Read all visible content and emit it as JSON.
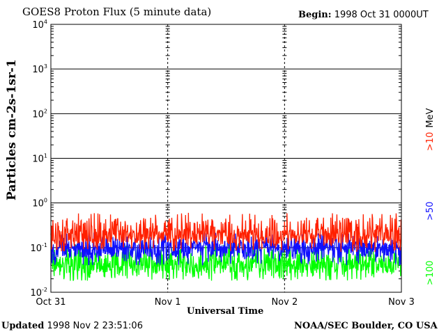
{
  "header": {
    "title": "GOES8 Proton Flux (5 minute data)",
    "begin_label": "Begin:",
    "begin_value": "1998 Oct 31 0000UT"
  },
  "footer": {
    "updated_label": "Updated",
    "updated_value": "1998 Nov  2 23:51:06",
    "credit": "NOAA/SEC Boulder, CO USA"
  },
  "chart_data": {
    "type": "line",
    "title": "GOES8 Proton Flux (5 minute data)",
    "xlabel": "Universal Time",
    "ylabel": "Particles cm-2s-1sr-1",
    "yscale": "log",
    "ylim": [
      0.01,
      10000
    ],
    "y_ticks": [
      {
        "base": "10",
        "exp": "-2"
      },
      {
        "base": "10",
        "exp": "-1"
      },
      {
        "base": "10",
        "exp": "0"
      },
      {
        "base": "10",
        "exp": "1"
      },
      {
        "base": "10",
        "exp": "2"
      },
      {
        "base": "10",
        "exp": "3"
      },
      {
        "base": "10",
        "exp": "4"
      }
    ],
    "x_tick_labels": [
      "Oct 31",
      "Nov 1",
      "Nov 2",
      "Nov 3"
    ],
    "x_range_days": [
      0,
      3
    ],
    "grid": true,
    "legend_position": "right",
    "series": [
      {
        "name": ">10",
        "unit": "MeV",
        "color": "#ff2000",
        "typical": 0.18,
        "min": 0.08,
        "max": 0.6
      },
      {
        "name": ">50",
        "color": "#1010ff",
        "typical": 0.09,
        "min": 0.04,
        "max": 0.22
      },
      {
        "name": ">100",
        "color": "#00ff00",
        "typical": 0.04,
        "min": 0.018,
        "max": 0.12
      }
    ]
  }
}
